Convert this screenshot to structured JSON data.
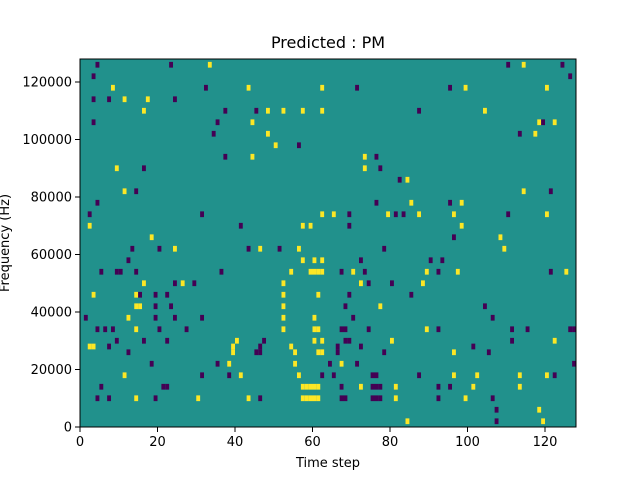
{
  "chart_data": {
    "type": "heatmap",
    "title": "Predicted : PM",
    "xlabel": "Time step",
    "ylabel": "Frequency (Hz)",
    "xlim": [
      0,
      128
    ],
    "ylim": [
      0,
      128000
    ],
    "xticks": [
      0,
      20,
      40,
      60,
      80,
      100,
      120
    ],
    "yticks": [
      0,
      20000,
      40000,
      60000,
      80000,
      100000,
      120000
    ],
    "colors": {
      "background": "#21918c",
      "high": "#fde725",
      "low": "#440154"
    },
    "levels": [
      -1,
      0,
      1
    ],
    "grid": false,
    "cell_height_hz": 2000,
    "cells": [
      {
        "t": 4,
        "f": 126000,
        "v": -1
      },
      {
        "t": 23,
        "f": 126000,
        "v": -1
      },
      {
        "t": 33,
        "f": 126000,
        "v": 1
      },
      {
        "t": 110,
        "f": 126000,
        "v": -1
      },
      {
        "t": 114,
        "f": 126000,
        "v": 1
      },
      {
        "t": 124,
        "f": 126000,
        "v": -1
      },
      {
        "t": 3,
        "f": 122000,
        "v": -1
      },
      {
        "t": 126,
        "f": 122000,
        "v": -1
      },
      {
        "t": 8,
        "f": 118000,
        "v": 1
      },
      {
        "t": 32,
        "f": 118000,
        "v": -1
      },
      {
        "t": 43,
        "f": 118000,
        "v": 1
      },
      {
        "t": 62,
        "f": 118000,
        "v": 1
      },
      {
        "t": 71,
        "f": 118000,
        "v": -1
      },
      {
        "t": 95,
        "f": 118000,
        "v": -1
      },
      {
        "t": 99,
        "f": 118000,
        "v": 1
      },
      {
        "t": 120,
        "f": 118000,
        "v": 1
      },
      {
        "t": 3,
        "f": 114000,
        "v": -1
      },
      {
        "t": 7,
        "f": 114000,
        "v": -1
      },
      {
        "t": 11,
        "f": 114000,
        "v": 1
      },
      {
        "t": 17,
        "f": 114000,
        "v": 1
      },
      {
        "t": 24,
        "f": 114000,
        "v": -1
      },
      {
        "t": 16,
        "f": 110000,
        "v": 1
      },
      {
        "t": 37,
        "f": 110000,
        "v": -1
      },
      {
        "t": 45,
        "f": 110000,
        "v": -1
      },
      {
        "t": 48,
        "f": 110000,
        "v": 1
      },
      {
        "t": 52,
        "f": 110000,
        "v": 1
      },
      {
        "t": 57,
        "f": 110000,
        "v": 1
      },
      {
        "t": 62,
        "f": 110000,
        "v": 1
      },
      {
        "t": 87,
        "f": 110000,
        "v": -1
      },
      {
        "t": 104,
        "f": 110000,
        "v": 1
      },
      {
        "t": 3,
        "f": 106000,
        "v": -1
      },
      {
        "t": 35,
        "f": 106000,
        "v": -1
      },
      {
        "t": 44,
        "f": 106000,
        "v": 1
      },
      {
        "t": 118,
        "f": 106000,
        "v": 1
      },
      {
        "t": 119,
        "f": 106000,
        "v": -1
      },
      {
        "t": 122,
        "f": 106000,
        "v": 1
      },
      {
        "t": 34,
        "f": 102000,
        "v": -1
      },
      {
        "t": 48,
        "f": 102000,
        "v": 1
      },
      {
        "t": 113,
        "f": 102000,
        "v": -1
      },
      {
        "t": 117,
        "f": 102000,
        "v": 1
      },
      {
        "t": 50,
        "f": 98000,
        "v": 1
      },
      {
        "t": 56,
        "f": 98000,
        "v": -1
      },
      {
        "t": 37,
        "f": 94000,
        "v": -1
      },
      {
        "t": 44,
        "f": 94000,
        "v": 1
      },
      {
        "t": 73,
        "f": 94000,
        "v": 1
      },
      {
        "t": 76,
        "f": 94000,
        "v": -1
      },
      {
        "t": 9,
        "f": 90000,
        "v": 1
      },
      {
        "t": 16,
        "f": 90000,
        "v": -1
      },
      {
        "t": 73,
        "f": 90000,
        "v": 1
      },
      {
        "t": 77,
        "f": 90000,
        "v": -1
      },
      {
        "t": 82,
        "f": 86000,
        "v": -1
      },
      {
        "t": 84,
        "f": 86000,
        "v": 1
      },
      {
        "t": 11,
        "f": 82000,
        "v": 1
      },
      {
        "t": 14,
        "f": 82000,
        "v": -1
      },
      {
        "t": 114,
        "f": 82000,
        "v": 1
      },
      {
        "t": 121,
        "f": 82000,
        "v": -1
      },
      {
        "t": 4,
        "f": 78000,
        "v": -1
      },
      {
        "t": 76,
        "f": 78000,
        "v": -1
      },
      {
        "t": 85,
        "f": 78000,
        "v": 1
      },
      {
        "t": 95,
        "f": 78000,
        "v": -1
      },
      {
        "t": 98,
        "f": 78000,
        "v": 1
      },
      {
        "t": 2,
        "f": 74000,
        "v": -1
      },
      {
        "t": 31,
        "f": 74000,
        "v": -1
      },
      {
        "t": 62,
        "f": 74000,
        "v": 1
      },
      {
        "t": 65,
        "f": 74000,
        "v": 1
      },
      {
        "t": 69,
        "f": 74000,
        "v": -1
      },
      {
        "t": 79,
        "f": 74000,
        "v": 1
      },
      {
        "t": 81,
        "f": 74000,
        "v": -1
      },
      {
        "t": 83,
        "f": 74000,
        "v": -1
      },
      {
        "t": 87,
        "f": 74000,
        "v": 1
      },
      {
        "t": 96,
        "f": 74000,
        "v": 1
      },
      {
        "t": 110,
        "f": 74000,
        "v": -1
      },
      {
        "t": 120,
        "f": 74000,
        "v": 1
      },
      {
        "t": 2,
        "f": 70000,
        "v": 1
      },
      {
        "t": 41,
        "f": 70000,
        "v": -1
      },
      {
        "t": 57,
        "f": 70000,
        "v": 1
      },
      {
        "t": 59,
        "f": 70000,
        "v": 1
      },
      {
        "t": 69,
        "f": 70000,
        "v": -1
      },
      {
        "t": 98,
        "f": 70000,
        "v": 1
      },
      {
        "t": 18,
        "f": 66000,
        "v": 1
      },
      {
        "t": 96,
        "f": 66000,
        "v": -1
      },
      {
        "t": 108,
        "f": 66000,
        "v": 1
      },
      {
        "t": 13,
        "f": 62000,
        "v": -1
      },
      {
        "t": 20,
        "f": 62000,
        "v": -1
      },
      {
        "t": 24,
        "f": 62000,
        "v": 1
      },
      {
        "t": 43,
        "f": 62000,
        "v": -1
      },
      {
        "t": 46,
        "f": 62000,
        "v": 1
      },
      {
        "t": 51,
        "f": 62000,
        "v": -1
      },
      {
        "t": 56,
        "f": 62000,
        "v": 1
      },
      {
        "t": 78,
        "f": 62000,
        "v": -1
      },
      {
        "t": 109,
        "f": 62000,
        "v": 1
      },
      {
        "t": 12,
        "f": 58000,
        "v": -1
      },
      {
        "t": 57,
        "f": 58000,
        "v": 1
      },
      {
        "t": 60,
        "f": 58000,
        "v": 1
      },
      {
        "t": 62,
        "f": 58000,
        "v": 1
      },
      {
        "t": 72,
        "f": 58000,
        "v": -1
      },
      {
        "t": 90,
        "f": 58000,
        "v": -1
      },
      {
        "t": 93,
        "f": 58000,
        "v": -1
      },
      {
        "t": 5,
        "f": 54000,
        "v": -1
      },
      {
        "t": 9,
        "f": 54000,
        "v": -1
      },
      {
        "t": 10,
        "f": 54000,
        "v": -1
      },
      {
        "t": 14,
        "f": 54000,
        "v": -1
      },
      {
        "t": 36,
        "f": 54000,
        "v": -1
      },
      {
        "t": 54,
        "f": 54000,
        "v": 1
      },
      {
        "t": 59,
        "f": 54000,
        "v": 1
      },
      {
        "t": 60,
        "f": 54000,
        "v": 1
      },
      {
        "t": 61,
        "f": 54000,
        "v": 1
      },
      {
        "t": 62,
        "f": 54000,
        "v": 1
      },
      {
        "t": 67,
        "f": 54000,
        "v": -1
      },
      {
        "t": 70,
        "f": 54000,
        "v": 1
      },
      {
        "t": 73,
        "f": 54000,
        "v": -1
      },
      {
        "t": 89,
        "f": 54000,
        "v": 1
      },
      {
        "t": 92,
        "f": 54000,
        "v": -1
      },
      {
        "t": 97,
        "f": 54000,
        "v": 1
      },
      {
        "t": 121,
        "f": 54000,
        "v": -1
      },
      {
        "t": 125,
        "f": 54000,
        "v": 1
      },
      {
        "t": 16,
        "f": 50000,
        "v": 1
      },
      {
        "t": 24,
        "f": 50000,
        "v": -1
      },
      {
        "t": 26,
        "f": 50000,
        "v": 1
      },
      {
        "t": 29,
        "f": 50000,
        "v": -1
      },
      {
        "t": 52,
        "f": 50000,
        "v": 1
      },
      {
        "t": 72,
        "f": 50000,
        "v": 1
      },
      {
        "t": 74,
        "f": 50000,
        "v": -1
      },
      {
        "t": 80,
        "f": 50000,
        "v": -1
      },
      {
        "t": 88,
        "f": 50000,
        "v": 1
      },
      {
        "t": 3,
        "f": 46000,
        "v": 1
      },
      {
        "t": 14,
        "f": 46000,
        "v": 1
      },
      {
        "t": 15,
        "f": 46000,
        "v": -1
      },
      {
        "t": 19,
        "f": 46000,
        "v": -1
      },
      {
        "t": 22,
        "f": 46000,
        "v": -1
      },
      {
        "t": 52,
        "f": 46000,
        "v": 1
      },
      {
        "t": 61,
        "f": 46000,
        "v": 1
      },
      {
        "t": 69,
        "f": 46000,
        "v": -1
      },
      {
        "t": 85,
        "f": 46000,
        "v": -1
      },
      {
        "t": 14,
        "f": 42000,
        "v": 1
      },
      {
        "t": 15,
        "f": 42000,
        "v": 1
      },
      {
        "t": 19,
        "f": 42000,
        "v": -1
      },
      {
        "t": 23,
        "f": 42000,
        "v": -1
      },
      {
        "t": 52,
        "f": 42000,
        "v": 1
      },
      {
        "t": 68,
        "f": 42000,
        "v": -1
      },
      {
        "t": 77,
        "f": 42000,
        "v": 1
      },
      {
        "t": 104,
        "f": 42000,
        "v": -1
      },
      {
        "t": 1,
        "f": 38000,
        "v": -1
      },
      {
        "t": 12,
        "f": 38000,
        "v": 1
      },
      {
        "t": 19,
        "f": 38000,
        "v": -1
      },
      {
        "t": 24,
        "f": 38000,
        "v": -1
      },
      {
        "t": 31,
        "f": 38000,
        "v": -1
      },
      {
        "t": 52,
        "f": 38000,
        "v": 1
      },
      {
        "t": 60,
        "f": 38000,
        "v": 1
      },
      {
        "t": 70,
        "f": 38000,
        "v": -1
      },
      {
        "t": 106,
        "f": 38000,
        "v": -1
      },
      {
        "t": 4,
        "f": 34000,
        "v": -1
      },
      {
        "t": 6,
        "f": 34000,
        "v": -1
      },
      {
        "t": 8,
        "f": 34000,
        "v": -1
      },
      {
        "t": 14,
        "f": 34000,
        "v": 1
      },
      {
        "t": 20,
        "f": 34000,
        "v": -1
      },
      {
        "t": 27,
        "f": 34000,
        "v": -1
      },
      {
        "t": 52,
        "f": 34000,
        "v": 1
      },
      {
        "t": 60,
        "f": 34000,
        "v": 1
      },
      {
        "t": 61,
        "f": 34000,
        "v": 1
      },
      {
        "t": 67,
        "f": 34000,
        "v": -1
      },
      {
        "t": 68,
        "f": 34000,
        "v": -1
      },
      {
        "t": 74,
        "f": 34000,
        "v": -1
      },
      {
        "t": 89,
        "f": 34000,
        "v": 1
      },
      {
        "t": 92,
        "f": 34000,
        "v": -1
      },
      {
        "t": 111,
        "f": 34000,
        "v": -1
      },
      {
        "t": 115,
        "f": 34000,
        "v": -1
      },
      {
        "t": 126,
        "f": 34000,
        "v": -1
      },
      {
        "t": 127,
        "f": 34000,
        "v": -1
      },
      {
        "t": 9,
        "f": 30000,
        "v": -1
      },
      {
        "t": 16,
        "f": 30000,
        "v": -1
      },
      {
        "t": 22,
        "f": 30000,
        "v": -1
      },
      {
        "t": 40,
        "f": 30000,
        "v": 1
      },
      {
        "t": 47,
        "f": 30000,
        "v": -1
      },
      {
        "t": 60,
        "f": 30000,
        "v": 1
      },
      {
        "t": 62,
        "f": 30000,
        "v": 1
      },
      {
        "t": 68,
        "f": 30000,
        "v": -1
      },
      {
        "t": 69,
        "f": 30000,
        "v": -1
      },
      {
        "t": 80,
        "f": 30000,
        "v": 1
      },
      {
        "t": 111,
        "f": 30000,
        "v": -1
      },
      {
        "t": 122,
        "f": 30000,
        "v": 1
      },
      {
        "t": 2,
        "f": 28000,
        "v": 1
      },
      {
        "t": 3,
        "f": 28000,
        "v": 1
      },
      {
        "t": 7,
        "f": 28000,
        "v": -1
      },
      {
        "t": 39,
        "f": 28000,
        "v": 1
      },
      {
        "t": 46,
        "f": 28000,
        "v": -1
      },
      {
        "t": 54,
        "f": 28000,
        "v": 1
      },
      {
        "t": 66,
        "f": 28000,
        "v": -1
      },
      {
        "t": 72,
        "f": 28000,
        "v": -1
      },
      {
        "t": 101,
        "f": 28000,
        "v": -1
      },
      {
        "t": 12,
        "f": 26000,
        "v": -1
      },
      {
        "t": 39,
        "f": 26000,
        "v": 1
      },
      {
        "t": 45,
        "f": 26000,
        "v": -1
      },
      {
        "t": 46,
        "f": 26000,
        "v": -1
      },
      {
        "t": 55,
        "f": 26000,
        "v": 1
      },
      {
        "t": 61,
        "f": 26000,
        "v": 1
      },
      {
        "t": 62,
        "f": 26000,
        "v": 1
      },
      {
        "t": 66,
        "f": 26000,
        "v": -1
      },
      {
        "t": 78,
        "f": 26000,
        "v": -1
      },
      {
        "t": 96,
        "f": 26000,
        "v": 1
      },
      {
        "t": 105,
        "f": 26000,
        "v": -1
      },
      {
        "t": 18,
        "f": 22000,
        "v": -1
      },
      {
        "t": 35,
        "f": 22000,
        "v": -1
      },
      {
        "t": 38,
        "f": 22000,
        "v": 1
      },
      {
        "t": 55,
        "f": 22000,
        "v": 1
      },
      {
        "t": 64,
        "f": 22000,
        "v": -1
      },
      {
        "t": 67,
        "f": 22000,
        "v": 1
      },
      {
        "t": 71,
        "f": 22000,
        "v": -1
      },
      {
        "t": 127,
        "f": 22000,
        "v": -1
      },
      {
        "t": 11,
        "f": 18000,
        "v": 1
      },
      {
        "t": 31,
        "f": 18000,
        "v": -1
      },
      {
        "t": 38,
        "f": 18000,
        "v": -1
      },
      {
        "t": 41,
        "f": 18000,
        "v": 1
      },
      {
        "t": 56,
        "f": 18000,
        "v": 1
      },
      {
        "t": 62,
        "f": 18000,
        "v": -1
      },
      {
        "t": 65,
        "f": 18000,
        "v": -1
      },
      {
        "t": 75,
        "f": 18000,
        "v": -1
      },
      {
        "t": 76,
        "f": 18000,
        "v": -1
      },
      {
        "t": 87,
        "f": 18000,
        "v": -1
      },
      {
        "t": 96,
        "f": 18000,
        "v": 1
      },
      {
        "t": 102,
        "f": 18000,
        "v": 1
      },
      {
        "t": 113,
        "f": 18000,
        "v": 1
      },
      {
        "t": 120,
        "f": 18000,
        "v": 1
      },
      {
        "t": 122,
        "f": 18000,
        "v": -1
      },
      {
        "t": 5,
        "f": 14000,
        "v": -1
      },
      {
        "t": 21,
        "f": 14000,
        "v": -1
      },
      {
        "t": 22,
        "f": 14000,
        "v": -1
      },
      {
        "t": 57,
        "f": 14000,
        "v": 1
      },
      {
        "t": 58,
        "f": 14000,
        "v": 1
      },
      {
        "t": 59,
        "f": 14000,
        "v": 1
      },
      {
        "t": 60,
        "f": 14000,
        "v": 1
      },
      {
        "t": 61,
        "f": 14000,
        "v": 1
      },
      {
        "t": 67,
        "f": 14000,
        "v": -1
      },
      {
        "t": 72,
        "f": 14000,
        "v": 1
      },
      {
        "t": 75,
        "f": 14000,
        "v": -1
      },
      {
        "t": 76,
        "f": 14000,
        "v": -1
      },
      {
        "t": 77,
        "f": 14000,
        "v": -1
      },
      {
        "t": 81,
        "f": 14000,
        "v": 1
      },
      {
        "t": 92,
        "f": 14000,
        "v": -1
      },
      {
        "t": 95,
        "f": 14000,
        "v": -1
      },
      {
        "t": 101,
        "f": 14000,
        "v": 1
      },
      {
        "t": 113,
        "f": 14000,
        "v": 1
      },
      {
        "t": 4,
        "f": 10000,
        "v": -1
      },
      {
        "t": 7,
        "f": 10000,
        "v": -1
      },
      {
        "t": 14,
        "f": 10000,
        "v": 1
      },
      {
        "t": 19,
        "f": 10000,
        "v": -1
      },
      {
        "t": 30,
        "f": 10000,
        "v": 1
      },
      {
        "t": 43,
        "f": 10000,
        "v": 1
      },
      {
        "t": 46,
        "f": 10000,
        "v": -1
      },
      {
        "t": 57,
        "f": 10000,
        "v": 1
      },
      {
        "t": 58,
        "f": 10000,
        "v": 1
      },
      {
        "t": 59,
        "f": 10000,
        "v": 1
      },
      {
        "t": 60,
        "f": 10000,
        "v": 1
      },
      {
        "t": 61,
        "f": 10000,
        "v": 1
      },
      {
        "t": 67,
        "f": 10000,
        "v": -1
      },
      {
        "t": 68,
        "f": 10000,
        "v": -1
      },
      {
        "t": 75,
        "f": 10000,
        "v": -1
      },
      {
        "t": 76,
        "f": 10000,
        "v": -1
      },
      {
        "t": 77,
        "f": 10000,
        "v": -1
      },
      {
        "t": 81,
        "f": 10000,
        "v": 1
      },
      {
        "t": 92,
        "f": 10000,
        "v": -1
      },
      {
        "t": 99,
        "f": 10000,
        "v": 1
      },
      {
        "t": 106,
        "f": 10000,
        "v": -1
      },
      {
        "t": 107,
        "f": 6000,
        "v": -1
      },
      {
        "t": 118,
        "f": 6000,
        "v": 1
      },
      {
        "t": 84,
        "f": 2000,
        "v": 1
      },
      {
        "t": 107,
        "f": 2000,
        "v": -1
      },
      {
        "t": 119,
        "f": 2000,
        "v": 1
      }
    ]
  }
}
